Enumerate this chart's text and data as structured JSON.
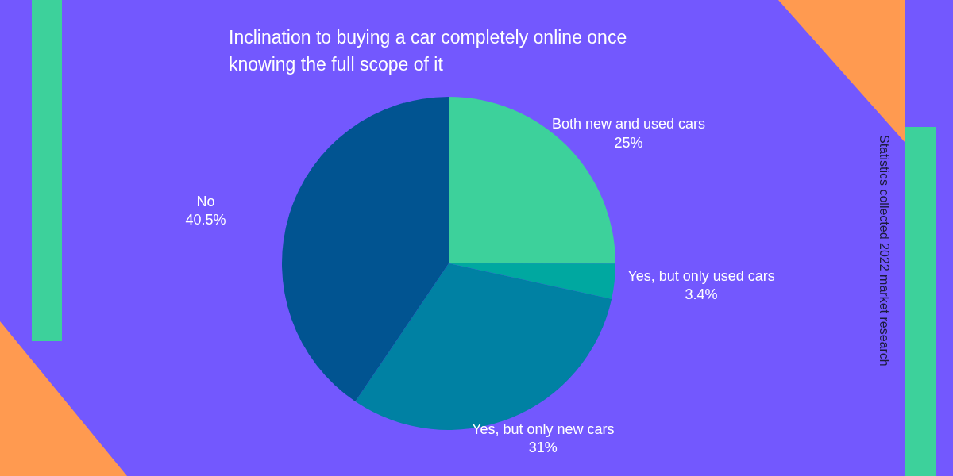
{
  "chart_data": {
    "type": "pie",
    "title": "Inclination to buying a car completely online once knowing the full scope of it",
    "categories": [
      "Both new and used cars",
      "Yes, but only used cars",
      "Yes, but only new cars",
      "No"
    ],
    "values": [
      25,
      3.4,
      31,
      40.5
    ],
    "colors": [
      "#3dd19b",
      "#00a8a0",
      "#0081a3",
      "#015491"
    ],
    "value_labels": [
      "25%",
      "3.4%",
      "31%",
      "40.5%"
    ],
    "annotations": [
      "Statistics collected 2022 market research"
    ]
  }
}
